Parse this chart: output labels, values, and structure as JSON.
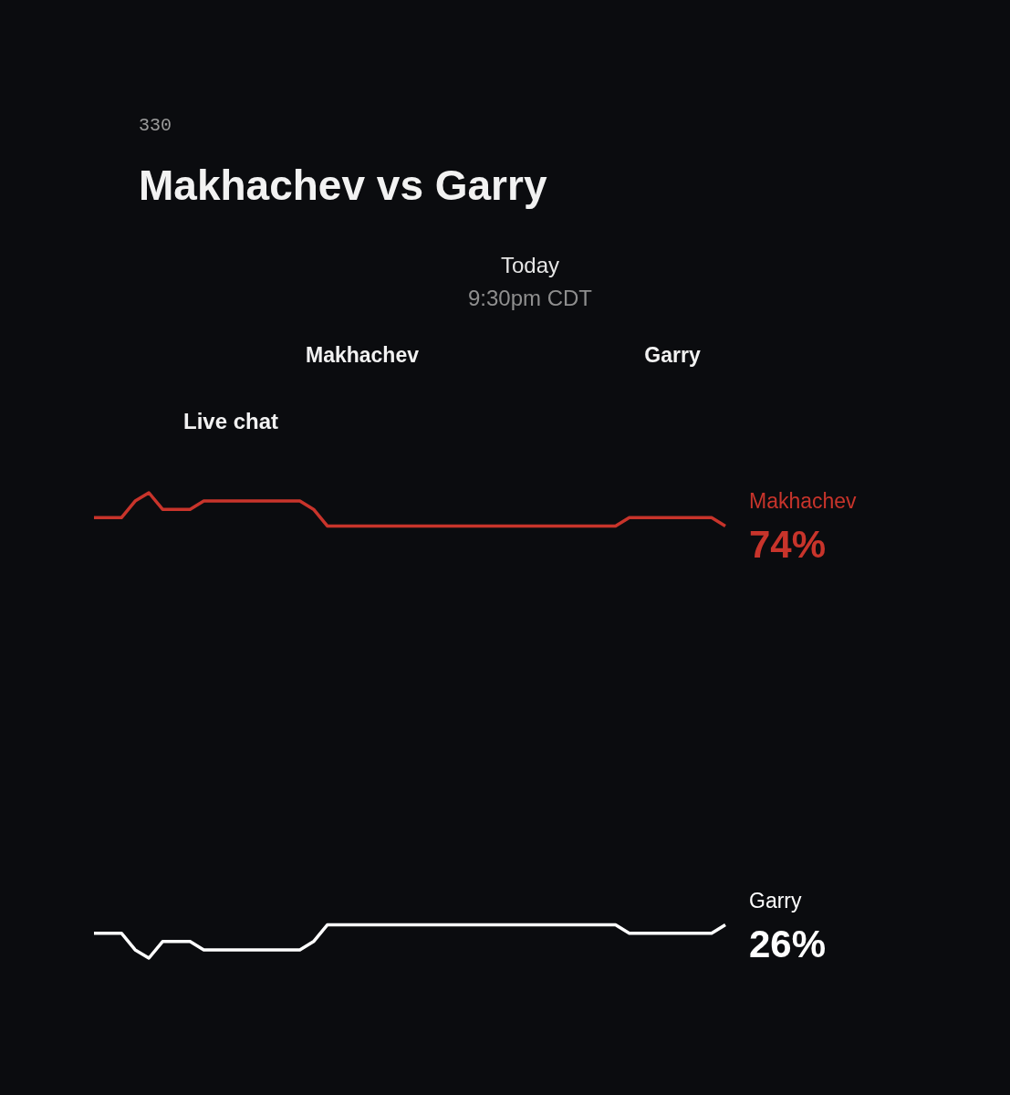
{
  "chart_data": {
    "type": "line",
    "title": "Makhachev vs Garry",
    "annotations": [
      "330",
      "Today",
      "9:30pm CDT",
      "Makhachev",
      "Garry",
      "Live chat"
    ],
    "categories": [
      null,
      null,
      null,
      null,
      null,
      null,
      null,
      null,
      null,
      null,
      null,
      null,
      null,
      null,
      null,
      null,
      null,
      null,
      null,
      null,
      null,
      null,
      null,
      null,
      null,
      null,
      null,
      null,
      null,
      null,
      null,
      null,
      null,
      null,
      null,
      null,
      null,
      null,
      null,
      null,
      null,
      null,
      null,
      null,
      null,
      null,
      null
    ],
    "tick_labels": false,
    "grid": false,
    "line_style": "solid",
    "marker": "none",
    "series": [
      {
        "name": "Makhachev",
        "color": "#c8342b",
        "values": [
          75,
          75,
          75,
          77,
          78,
          76,
          76,
          76,
          77,
          77,
          77,
          77,
          77,
          77,
          77,
          77,
          76,
          74,
          74,
          74,
          74,
          74,
          74,
          74,
          74,
          74,
          74,
          74,
          74,
          74,
          74,
          74,
          74,
          74,
          74,
          74,
          74,
          74,
          74,
          75,
          75,
          75,
          75,
          75,
          75,
          75,
          74
        ],
        "value_labels": [
          null,
          null,
          null,
          null,
          null,
          null,
          null,
          null,
          null,
          null,
          null,
          null,
          null,
          null,
          null,
          null,
          null,
          null,
          null,
          null,
          null,
          null,
          null,
          null,
          null,
          null,
          null,
          null,
          null,
          null,
          null,
          null,
          null,
          null,
          null,
          null,
          null,
          null,
          null,
          null,
          null,
          null,
          null,
          null,
          null,
          null,
          "74%"
        ]
      },
      {
        "name": "Garry",
        "color": "#ffffff",
        "values": [
          25,
          25,
          25,
          23,
          22,
          24,
          24,
          24,
          23,
          23,
          23,
          23,
          23,
          23,
          23,
          23,
          24,
          26,
          26,
          26,
          26,
          26,
          26,
          26,
          26,
          26,
          26,
          26,
          26,
          26,
          26,
          26,
          26,
          26,
          26,
          26,
          26,
          26,
          26,
          25,
          25,
          25,
          25,
          25,
          25,
          25,
          26
        ],
        "value_labels": [
          null,
          null,
          null,
          null,
          null,
          null,
          null,
          null,
          null,
          null,
          null,
          null,
          null,
          null,
          null,
          null,
          null,
          null,
          null,
          null,
          null,
          null,
          null,
          null,
          null,
          null,
          null,
          null,
          null,
          null,
          null,
          null,
          null,
          null,
          null,
          null,
          null,
          null,
          null,
          null,
          null,
          null,
          null,
          null,
          null,
          null,
          "26%"
        ]
      }
    ]
  }
}
